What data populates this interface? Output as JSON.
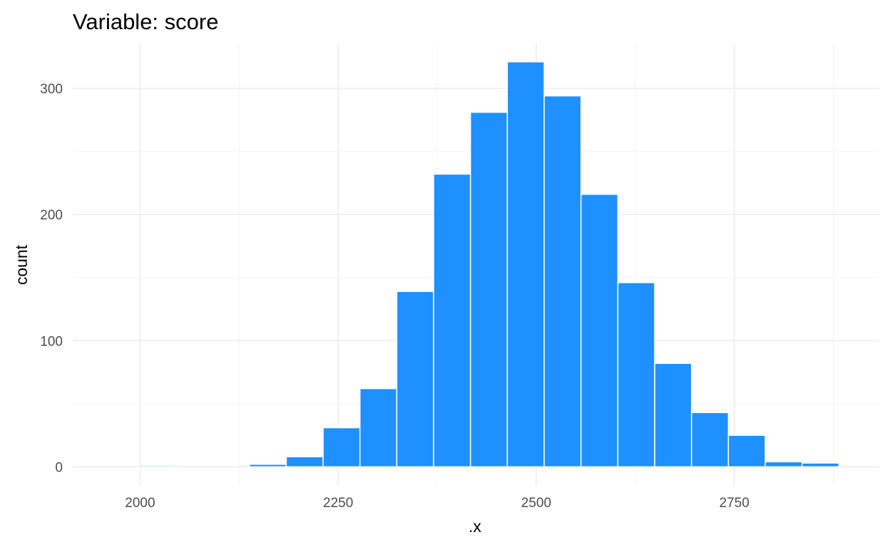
{
  "chart_data": {
    "type": "bar",
    "title": "Variable: score",
    "xlabel": ".x",
    "ylabel": "count",
    "bar_color": "#1E90FF",
    "bar_edge_color": "#FFFFFF",
    "background": "#FFFFFF",
    "grid": true,
    "xlim": [
      1915,
      2933
    ],
    "ylim": [
      -15,
      335
    ],
    "xticks": [
      2000,
      2250,
      2500,
      2750
    ],
    "xtick_labels": [
      "2000",
      "2250",
      "2500",
      "2750"
    ],
    "yticks": [
      0,
      100,
      200,
      300
    ],
    "ytick_labels": [
      "0",
      "100",
      "200",
      "300"
    ],
    "bin_width": 46.5,
    "bins": [
      {
        "x0": 1952,
        "x1": 1998.5,
        "count": 0
      },
      {
        "x0": 1998.5,
        "x1": 2045,
        "count": 1
      },
      {
        "x0": 2045,
        "x1": 2091.5,
        "count": 0
      },
      {
        "x0": 2091.5,
        "x1": 2138,
        "count": 0
      },
      {
        "x0": 2138,
        "x1": 2184.5,
        "count": 2
      },
      {
        "x0": 2184.5,
        "x1": 2231,
        "count": 8
      },
      {
        "x0": 2231,
        "x1": 2277.5,
        "count": 31
      },
      {
        "x0": 2277.5,
        "x1": 2324,
        "count": 62
      },
      {
        "x0": 2324,
        "x1": 2370.5,
        "count": 139
      },
      {
        "x0": 2370.5,
        "x1": 2417,
        "count": 232
      },
      {
        "x0": 2417,
        "x1": 2463.5,
        "count": 281
      },
      {
        "x0": 2463.5,
        "x1": 2510,
        "count": 321
      },
      {
        "x0": 2510,
        "x1": 2556.5,
        "count": 294
      },
      {
        "x0": 2556.5,
        "x1": 2603,
        "count": 216
      },
      {
        "x0": 2603,
        "x1": 2649.5,
        "count": 146
      },
      {
        "x0": 2649.5,
        "x1": 2696,
        "count": 82
      },
      {
        "x0": 2696,
        "x1": 2742.5,
        "count": 43
      },
      {
        "x0": 2742.5,
        "x1": 2789,
        "count": 25
      },
      {
        "x0": 2789,
        "x1": 2835.5,
        "count": 4
      },
      {
        "x0": 2835.5,
        "x1": 2882,
        "count": 3
      }
    ]
  }
}
